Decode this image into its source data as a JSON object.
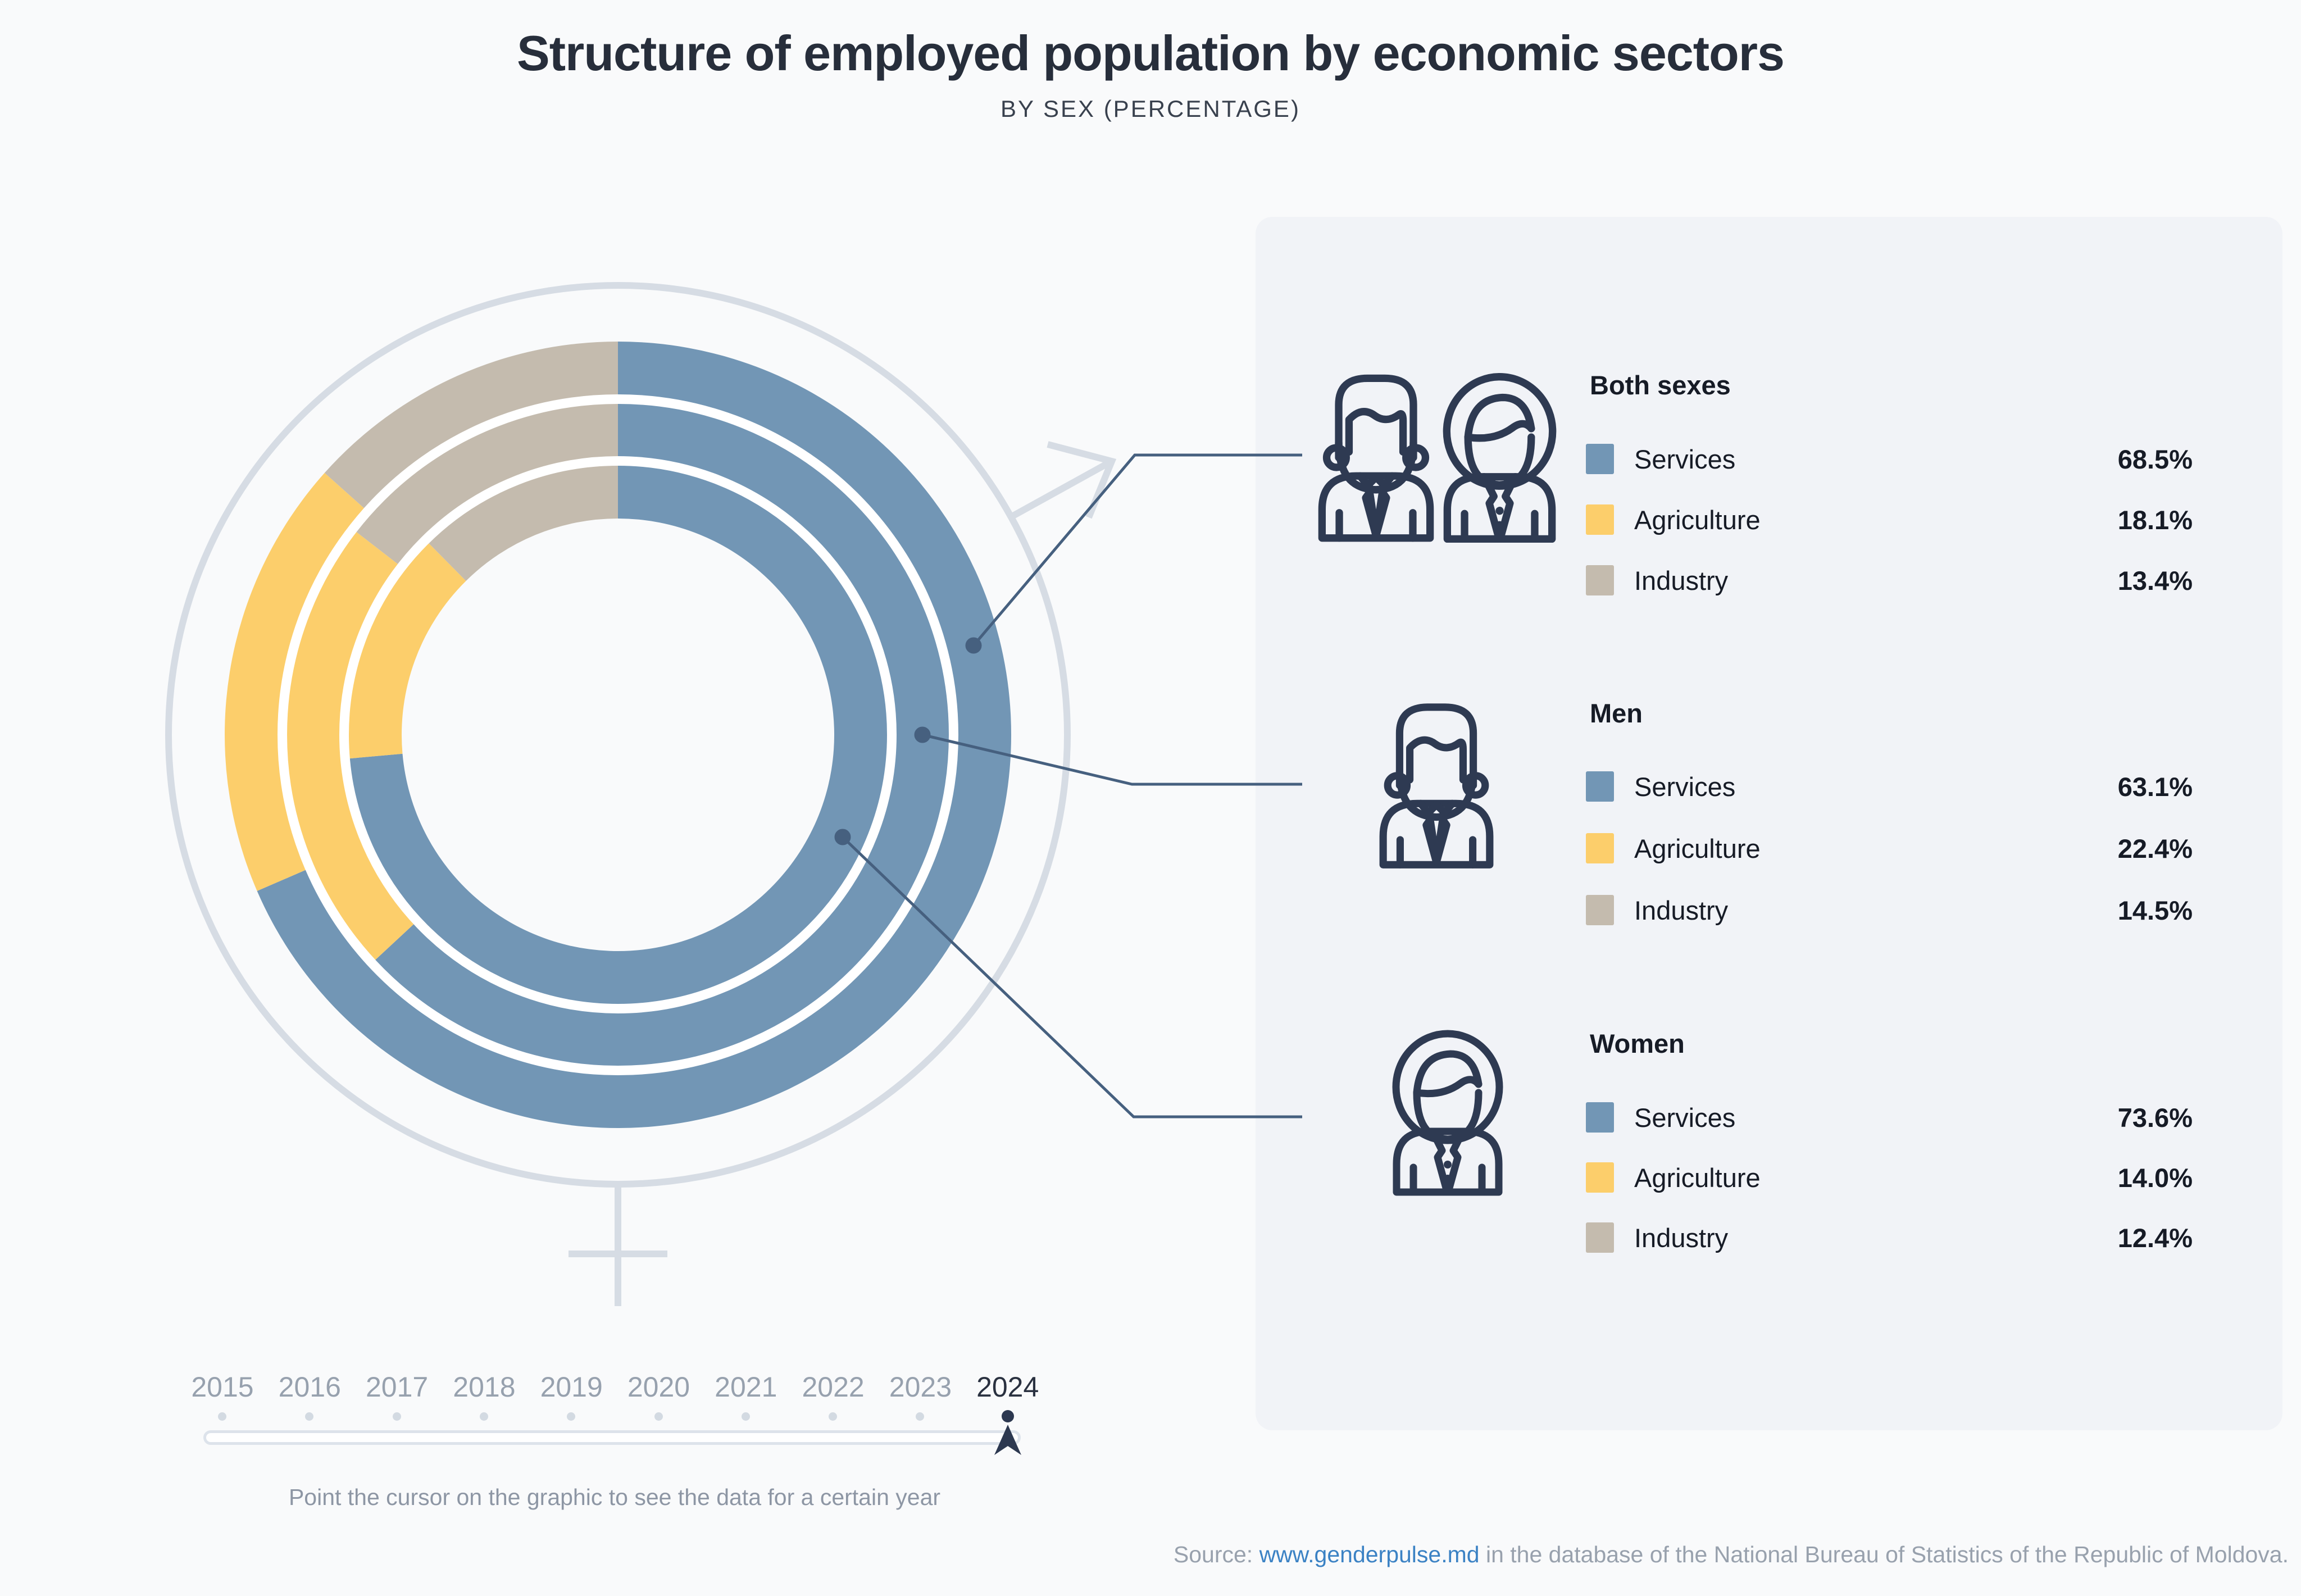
{
  "title": "Structure of employed population by economic sectors",
  "subtitle": "BY SEX (PERCENTAGE)",
  "chart_data": {
    "type": "pie",
    "subtype": "concentric-donut",
    "unit": "%",
    "title": "Structure of employed population by economic sectors",
    "categories": [
      "Services",
      "Agriculture",
      "Industry"
    ],
    "series": [
      {
        "name": "Both sexes",
        "ring": "outer",
        "values": [
          68.5,
          18.1,
          13.4
        ]
      },
      {
        "name": "Men",
        "ring": "middle",
        "values": [
          63.1,
          22.4,
          14.5
        ]
      },
      {
        "name": "Women",
        "ring": "inner",
        "values": [
          73.6,
          14.0,
          12.4
        ]
      }
    ],
    "colors": {
      "Services": "#7296b5",
      "Agriculture": "#fcce6b",
      "Industry": "#c4bbae"
    },
    "start_angle_deg": 0,
    "direction": "clockwise",
    "selected_year": "2024",
    "legend_position": "right"
  },
  "legend": {
    "groups": [
      {
        "title": "Both sexes",
        "icon": "man-woman",
        "rows": [
          {
            "label": "Services",
            "value": "68.5%"
          },
          {
            "label": "Agriculture",
            "value": "18.1%"
          },
          {
            "label": "Industry",
            "value": "13.4%"
          }
        ]
      },
      {
        "title": "Men",
        "icon": "man",
        "rows": [
          {
            "label": "Services",
            "value": "63.1%"
          },
          {
            "label": "Agriculture",
            "value": "22.4%"
          },
          {
            "label": "Industry",
            "value": "14.5%"
          }
        ]
      },
      {
        "title": "Women",
        "icon": "woman",
        "rows": [
          {
            "label": "Services",
            "value": "73.6%"
          },
          {
            "label": "Agriculture",
            "value": "14.0%"
          },
          {
            "label": "Industry",
            "value": "12.4%"
          }
        ]
      }
    ]
  },
  "slider": {
    "years": [
      "2015",
      "2016",
      "2017",
      "2018",
      "2019",
      "2020",
      "2021",
      "2022",
      "2023",
      "2024"
    ],
    "selected_year": "2024",
    "hint": "Point the cursor on the graphic to see the data for a certain year"
  },
  "source": {
    "prefix": "Source: ",
    "link_text": "www.genderpulse.md",
    "suffix": " in the database of the National Bureau of Statistics of the Republic of Moldova."
  },
  "colors": {
    "services": "#7296b5",
    "agriculture": "#fcce6b",
    "industry": "#c4bbae",
    "accent_dark": "#2e3a52",
    "callout": "#46607f",
    "gender_symbol": "#d6dce4",
    "link": "#3b82c4",
    "panel_bg": "#f1f3f7",
    "page_bg": "#f9fafb"
  }
}
